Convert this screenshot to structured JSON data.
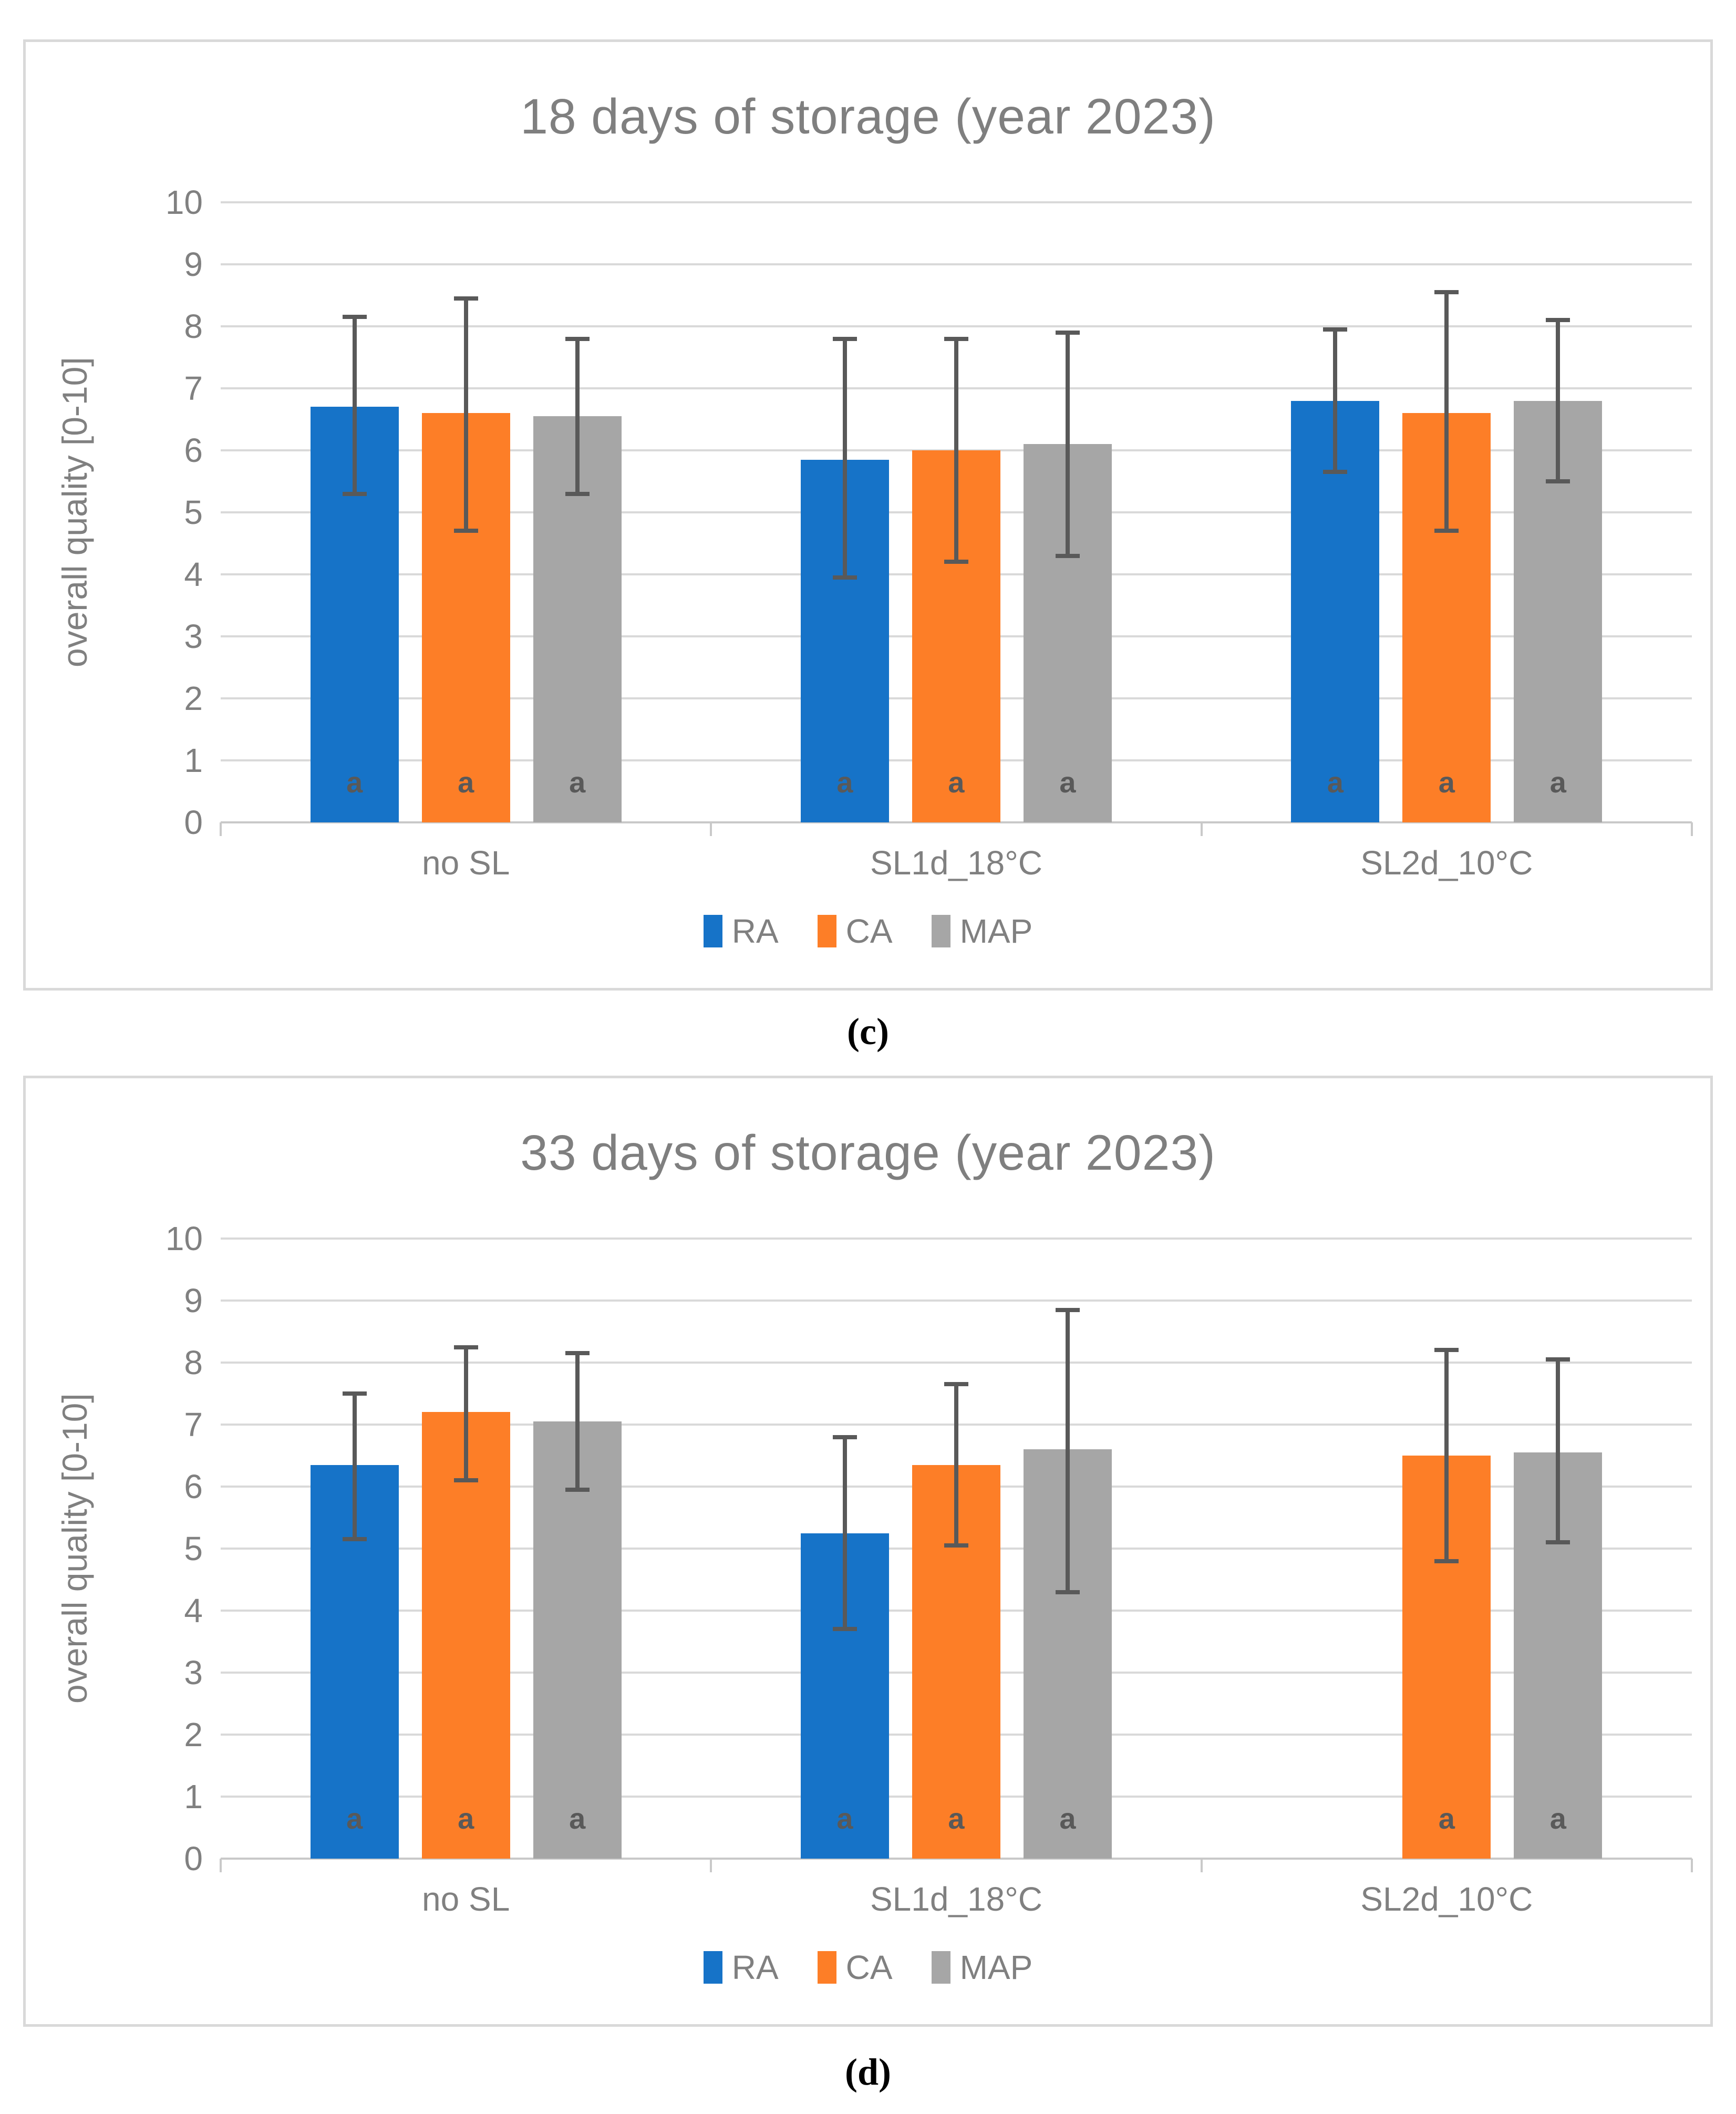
{
  "styles": {
    "grid_color": "#D9D9D9",
    "axis_color": "#C9C9C9",
    "panel_border_color": "#D9D9D9",
    "title_color": "#7F7F7F",
    "text_color": "#808080",
    "annotation_color": "#595959",
    "series_colors": {
      "RA": "#1673C8",
      "CA": "#FD7E27",
      "MAP": "#A6A6A6"
    }
  },
  "chart_data": [
    {
      "type": "bar",
      "title": "18 days of storage (year 2023)",
      "xlabel": "",
      "ylabel": "overall quality [0-10]",
      "ylim": [
        0,
        10
      ],
      "y_tick_step": 1,
      "grid": true,
      "legend_position": "bottom",
      "caption": "(c)",
      "categories": [
        "no SL",
        "SL1d_18°C",
        "SL2d_10°C"
      ],
      "series": [
        {
          "name": "RA",
          "color": "#1673C8",
          "values": [
            6.7,
            5.85,
            6.8
          ],
          "error_low": [
            5.3,
            3.95,
            5.65
          ],
          "error_high": [
            8.15,
            7.8,
            7.95
          ],
          "bar_labels": [
            "a",
            "a",
            "a"
          ]
        },
        {
          "name": "CA",
          "color": "#FD7E27",
          "values": [
            6.6,
            6.0,
            6.6
          ],
          "error_low": [
            4.7,
            4.2,
            4.7
          ],
          "error_high": [
            8.45,
            7.8,
            8.55
          ],
          "bar_labels": [
            "a",
            "a",
            "a"
          ]
        },
        {
          "name": "MAP",
          "color": "#A6A6A6",
          "values": [
            6.55,
            6.1,
            6.8
          ],
          "error_low": [
            5.3,
            4.3,
            5.5
          ],
          "error_high": [
            7.8,
            7.9,
            8.1
          ],
          "bar_labels": [
            "a",
            "a",
            "a"
          ]
        }
      ]
    },
    {
      "type": "bar",
      "title": "33 days of storage (year 2023)",
      "xlabel": "",
      "ylabel": "overall quality [0-10]",
      "ylim": [
        0,
        10
      ],
      "y_tick_step": 1,
      "grid": true,
      "legend_position": "bottom",
      "caption": "(d)",
      "categories": [
        "no SL",
        "SL1d_18°C",
        "SL2d_10°C"
      ],
      "series": [
        {
          "name": "RA",
          "color": "#1673C8",
          "values": [
            6.35,
            5.25,
            null
          ],
          "error_low": [
            5.15,
            3.7,
            null
          ],
          "error_high": [
            7.5,
            6.8,
            null
          ],
          "bar_labels": [
            "a",
            "a",
            ""
          ]
        },
        {
          "name": "CA",
          "color": "#FD7E27",
          "values": [
            7.2,
            6.35,
            6.5
          ],
          "error_low": [
            6.1,
            5.05,
            4.8
          ],
          "error_high": [
            8.25,
            7.65,
            8.2
          ],
          "bar_labels": [
            "a",
            "a",
            "a"
          ]
        },
        {
          "name": "MAP",
          "color": "#A6A6A6",
          "values": [
            7.05,
            6.6,
            6.55
          ],
          "error_low": [
            5.95,
            4.3,
            5.1
          ],
          "error_high": [
            8.15,
            8.85,
            8.05
          ],
          "bar_labels": [
            "a",
            "a",
            "a"
          ]
        }
      ]
    }
  ]
}
